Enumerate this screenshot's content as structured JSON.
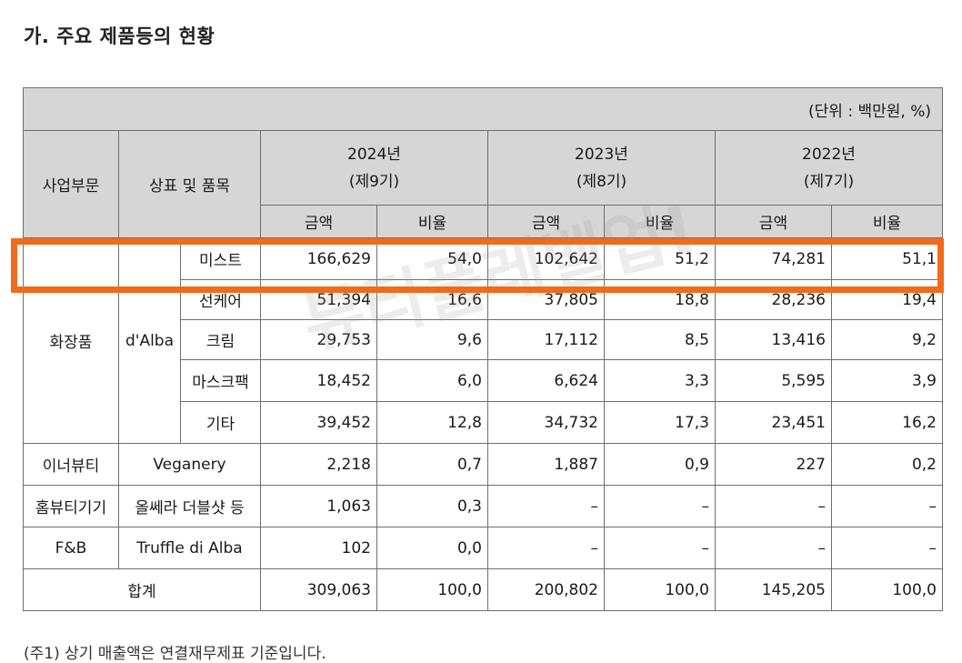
{
  "heading": "가. 주요 제품등의 현황",
  "unit_note": "(단위 : 백만원, %)",
  "headers": {
    "division": "사업부문",
    "brand": "상표 및 품목",
    "years": [
      {
        "year": "2024년",
        "term": "(제9기)"
      },
      {
        "year": "2023년",
        "term": "(제8기)"
      },
      {
        "year": "2022년",
        "term": "(제7기)"
      }
    ],
    "amount": "금액",
    "ratio": "비율"
  },
  "cosmetics": {
    "division": "화장품",
    "brand": "d'Alba",
    "rows": [
      {
        "item": "미스트",
        "values": [
          "166,629",
          "54,0",
          "102,642",
          "51,2",
          "74,281",
          "51,1"
        ]
      },
      {
        "item": "선케어",
        "values": [
          "51,394",
          "16,6",
          "37,805",
          "18,8",
          "28,236",
          "19,4"
        ]
      },
      {
        "item": "크림",
        "values": [
          "29,753",
          "9,6",
          "17,112",
          "8,5",
          "13,416",
          "9,2"
        ]
      },
      {
        "item": "마스크팩",
        "values": [
          "18,452",
          "6,0",
          "6,624",
          "3,3",
          "5,595",
          "3,9"
        ]
      },
      {
        "item": "기타",
        "values": [
          "39,452",
          "12,8",
          "34,732",
          "17,3",
          "23,451",
          "16,2"
        ]
      }
    ]
  },
  "other_rows": [
    {
      "division": "이너뷰티",
      "brand": "Veganery",
      "values": [
        "2,218",
        "0,7",
        "1,887",
        "0,9",
        "227",
        "0,2"
      ]
    },
    {
      "division": "홈뷰티기기",
      "brand": "올쎄라 더블샷 등",
      "values": [
        "1,063",
        "0,3",
        "–",
        "–",
        "–",
        "–"
      ]
    },
    {
      "division": "F&B",
      "brand": "Truffle di Alba",
      "values": [
        "102",
        "0,0",
        "–",
        "–",
        "–",
        "–"
      ]
    }
  ],
  "total": {
    "label": "합계",
    "values": [
      "309,063",
      "100,0",
      "200,802",
      "100,0",
      "145,205",
      "100,0"
    ]
  },
  "watermark": "뷰티플레벨업!",
  "footnote": "(주1) 상기 매출액은 연결재무제표 기준입니다."
}
